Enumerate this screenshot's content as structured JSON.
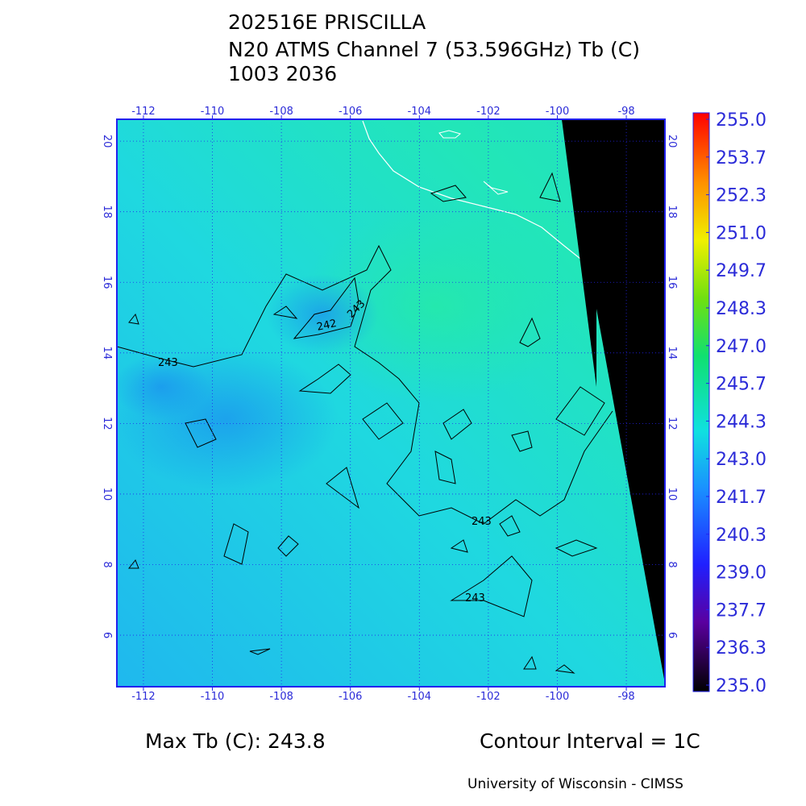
{
  "title": [
    "202516E PRISCILLA",
    "N20 ATMS Channel 7 (53.596GHz) Tb (C)",
    "1003 2036"
  ],
  "map": {
    "xlim": [
      -112.77,
      -96.88
    ],
    "ylim": [
      4.54,
      20.62
    ],
    "lon_ticks": [
      -112,
      -110,
      -108,
      -106,
      -104,
      -102,
      -100,
      -98
    ],
    "lat_ticks": [
      6,
      8,
      10,
      12,
      14,
      16,
      18,
      20
    ],
    "contour_labels": [
      243,
      242,
      243,
      243,
      243
    ]
  },
  "colorbar": {
    "lim": [
      235,
      255
    ],
    "ticks": [
      {
        "value": 255,
        "label": "255.0"
      },
      {
        "value": 253.667,
        "label": "253.7"
      },
      {
        "value": 252.333,
        "label": "252.3"
      },
      {
        "value": 251,
        "label": "251.0"
      },
      {
        "value": 249.667,
        "label": "249.7"
      },
      {
        "value": 248.333,
        "label": "248.3"
      },
      {
        "value": 247,
        "label": "247.0"
      },
      {
        "value": 245.667,
        "label": "245.7"
      },
      {
        "value": 244.333,
        "label": "244.3"
      },
      {
        "value": 243,
        "label": "243.0"
      },
      {
        "value": 241.667,
        "label": "241.7"
      },
      {
        "value": 240.333,
        "label": "240.3"
      },
      {
        "value": 239,
        "label": "239.0"
      },
      {
        "value": 237.667,
        "label": "237.7"
      },
      {
        "value": 236.333,
        "label": "236.3"
      },
      {
        "value": 235,
        "label": "235.0"
      }
    ]
  },
  "footer": {
    "max_tb": "Max Tb (C): 243.8",
    "contour_interval": "Contour Interval = 1C",
    "credit": "University of Wisconsin - CIMSS"
  }
}
